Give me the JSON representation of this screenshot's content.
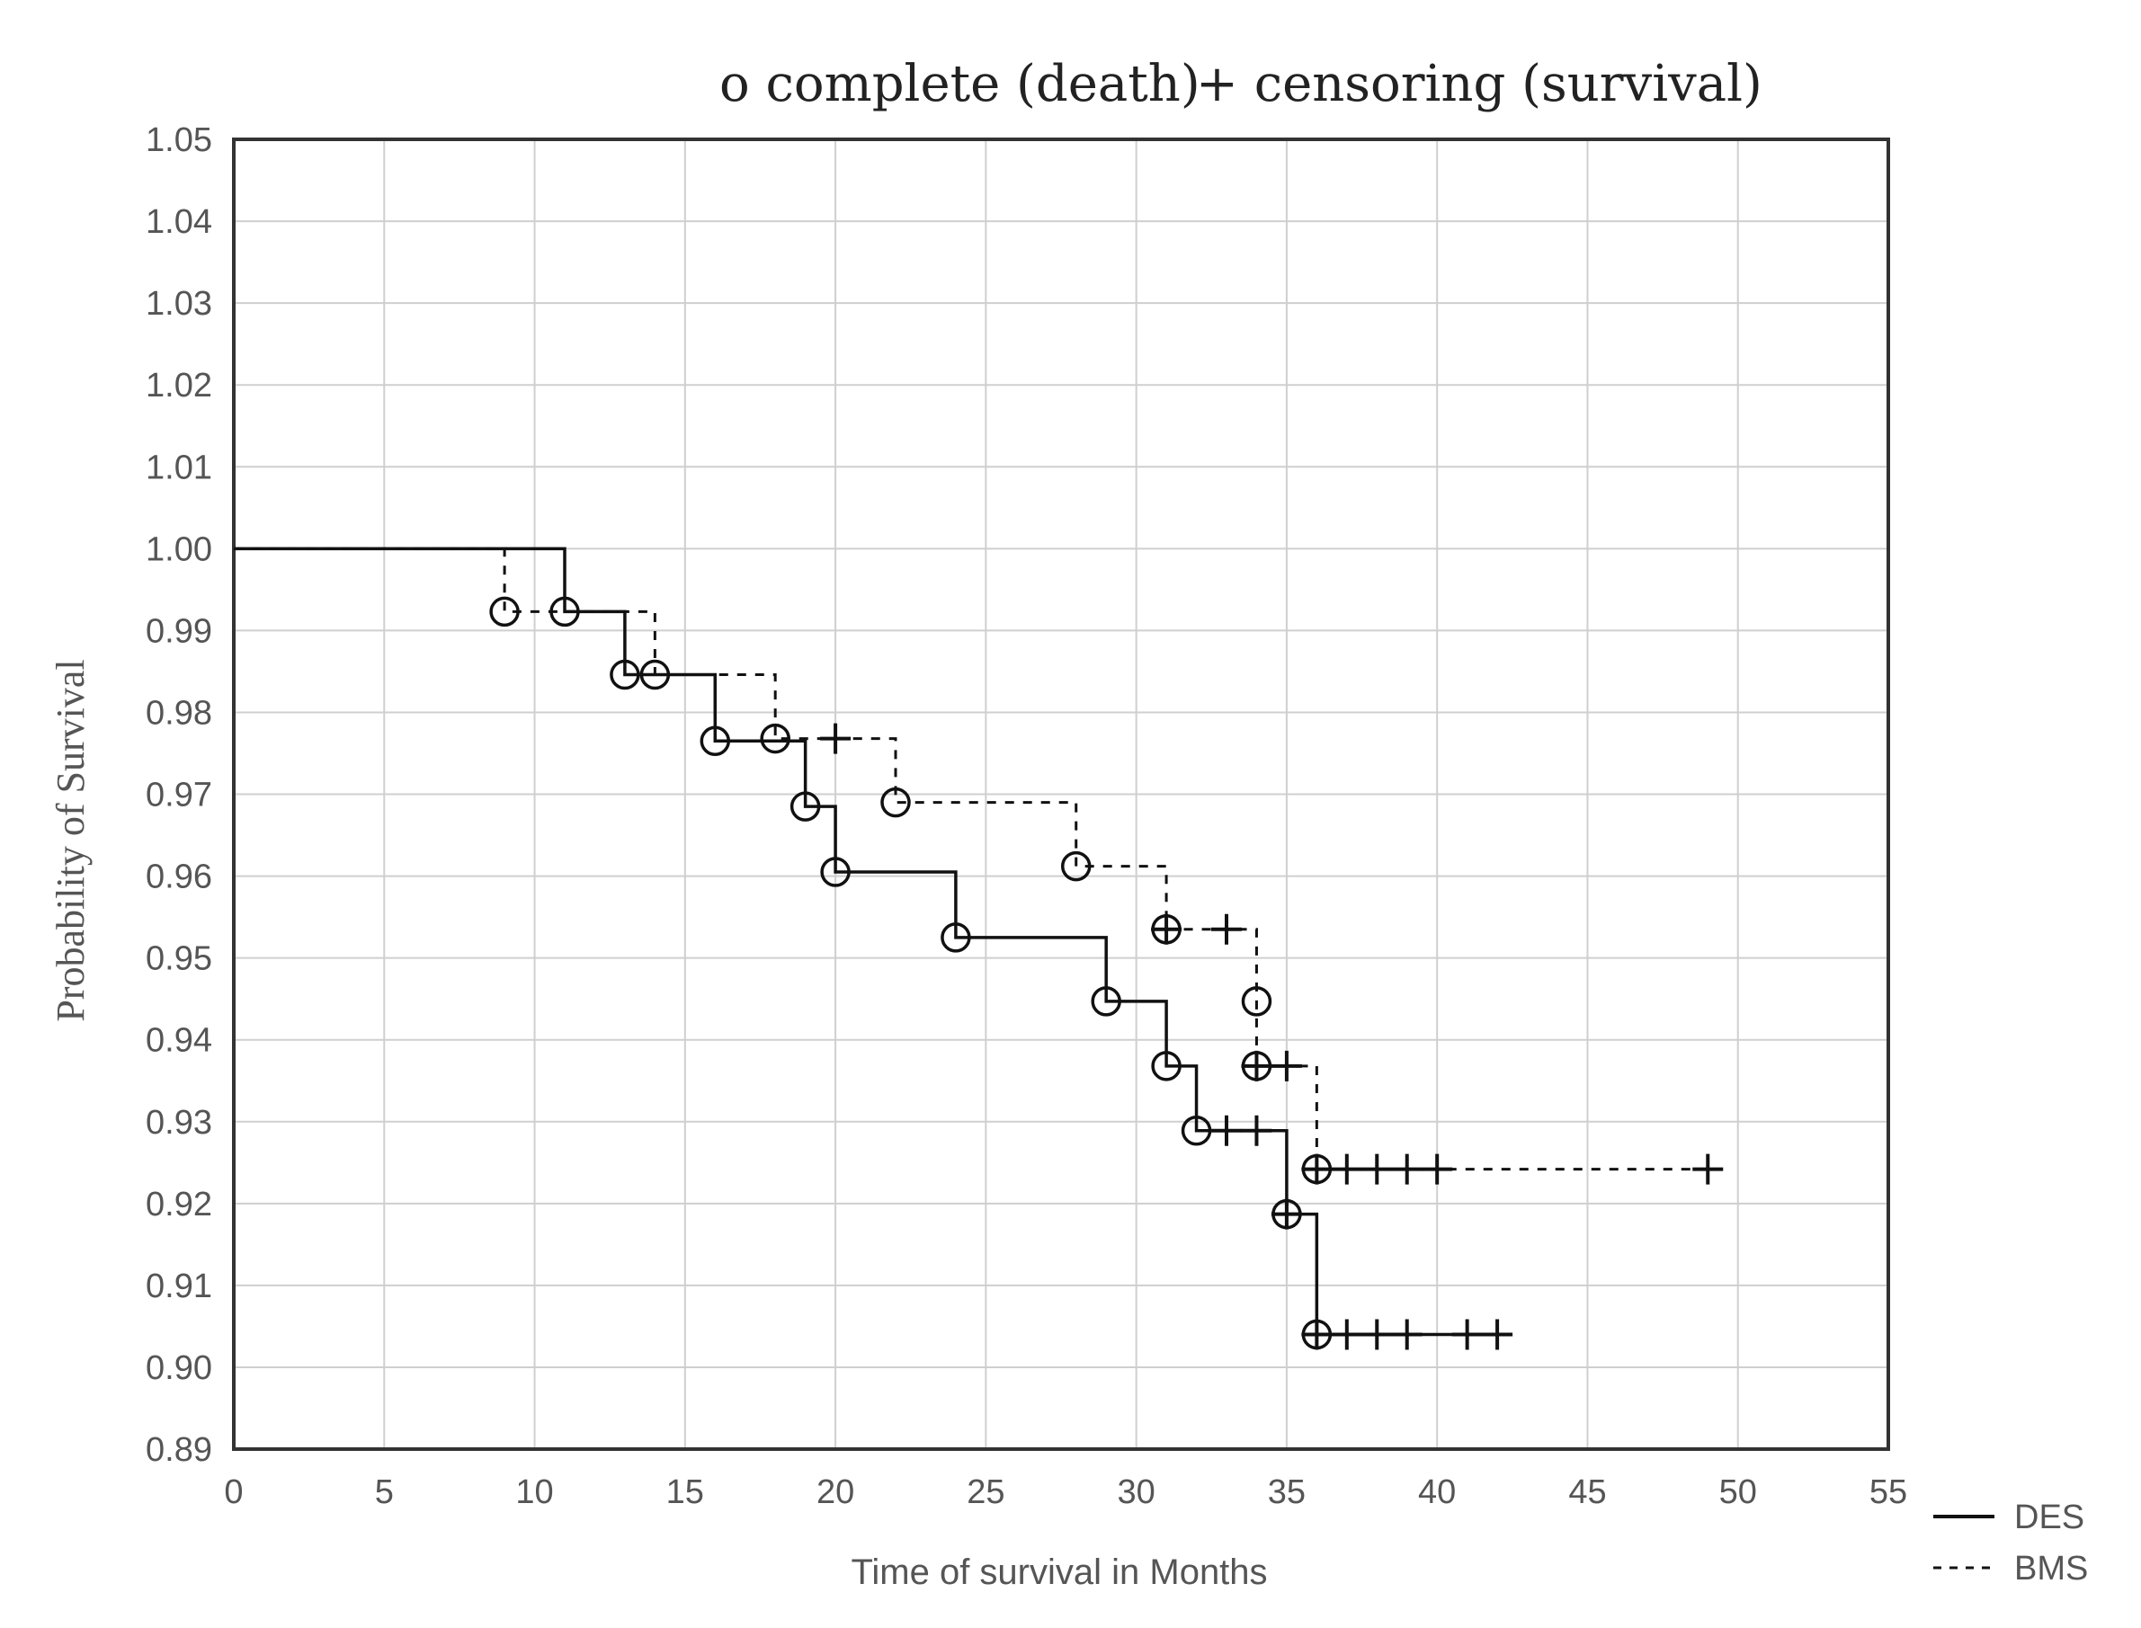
{
  "chart_data": {
    "type": "line",
    "subtype": "kaplan-meier step survival curve",
    "title": "",
    "marker_legend": {
      "complete": "o complete (death)",
      "censoring": "+ censoring (survival)"
    },
    "xlabel": "Time of survival in Months",
    "ylabel": "Probability of Survival",
    "xlim": [
      0,
      55
    ],
    "ylim": [
      0.89,
      1.05
    ],
    "x_ticks": [
      "0",
      "5",
      "10",
      "15",
      "20",
      "25",
      "30",
      "35",
      "40",
      "45",
      "50",
      "55"
    ],
    "y_ticks": [
      "1.05",
      "1.04",
      "1.03",
      "1.02",
      "1.01",
      "1.00",
      "0.99",
      "0.98",
      "0.97",
      "0.96",
      "0.95",
      "0.94",
      "0.93",
      "0.92",
      "0.91",
      "0.90",
      "0.89"
    ],
    "grid": true,
    "legend_position": "bottom-right outside plot",
    "series": [
      {
        "name": "DES",
        "line_style": "solid",
        "steps": [
          [
            0,
            1.0
          ],
          [
            11,
            0.9923
          ],
          [
            13,
            0.9846
          ],
          [
            16,
            0.9765
          ],
          [
            19,
            0.9685
          ],
          [
            20,
            0.9605
          ],
          [
            24,
            0.9525
          ],
          [
            29,
            0.9447
          ],
          [
            31,
            0.9368
          ],
          [
            32,
            0.9289
          ],
          [
            35,
            0.9187
          ],
          [
            36,
            0.904
          ],
          [
            42,
            0.904
          ]
        ],
        "events": [
          [
            11,
            0.9923
          ],
          [
            13,
            0.9846
          ],
          [
            16,
            0.9765
          ],
          [
            19,
            0.9685
          ],
          [
            20,
            0.9605
          ],
          [
            24,
            0.9525
          ],
          [
            29,
            0.9447
          ],
          [
            31,
            0.9368
          ],
          [
            32,
            0.9289
          ],
          [
            35,
            0.9187
          ],
          [
            36,
            0.904
          ]
        ],
        "censored": [
          [
            33,
            0.9289
          ],
          [
            34,
            0.9289
          ],
          [
            35,
            0.9187
          ],
          [
            36,
            0.904
          ],
          [
            37,
            0.904
          ],
          [
            38,
            0.904
          ],
          [
            39,
            0.904
          ],
          [
            41,
            0.904
          ],
          [
            42,
            0.904
          ]
        ]
      },
      {
        "name": "BMS",
        "line_style": "dashed",
        "steps": [
          [
            0,
            1.0
          ],
          [
            9,
            0.9923
          ],
          [
            14,
            0.9846
          ],
          [
            18,
            0.9768
          ],
          [
            22,
            0.969
          ],
          [
            28,
            0.9612
          ],
          [
            31,
            0.9535
          ],
          [
            34,
            0.9447
          ],
          [
            34,
            0.9368
          ],
          [
            36,
            0.9242
          ],
          [
            49,
            0.9242
          ]
        ],
        "events": [
          [
            9,
            0.9923
          ],
          [
            14,
            0.9846
          ],
          [
            18,
            0.9768
          ],
          [
            22,
            0.969
          ],
          [
            28,
            0.9612
          ],
          [
            31,
            0.9535
          ],
          [
            34,
            0.9447
          ],
          [
            34,
            0.9368
          ],
          [
            36,
            0.9242
          ]
        ],
        "censored": [
          [
            20,
            0.9768
          ],
          [
            31,
            0.9535
          ],
          [
            33,
            0.9535
          ],
          [
            34,
            0.9368
          ],
          [
            35,
            0.9368
          ],
          [
            36,
            0.9242
          ],
          [
            37,
            0.9242
          ],
          [
            38,
            0.9242
          ],
          [
            39,
            0.9242
          ],
          [
            40,
            0.9242
          ],
          [
            49,
            0.9242
          ]
        ]
      }
    ],
    "colors": {
      "line": "#111111",
      "grid": "#cfcfcf",
      "text": "#555555"
    }
  }
}
